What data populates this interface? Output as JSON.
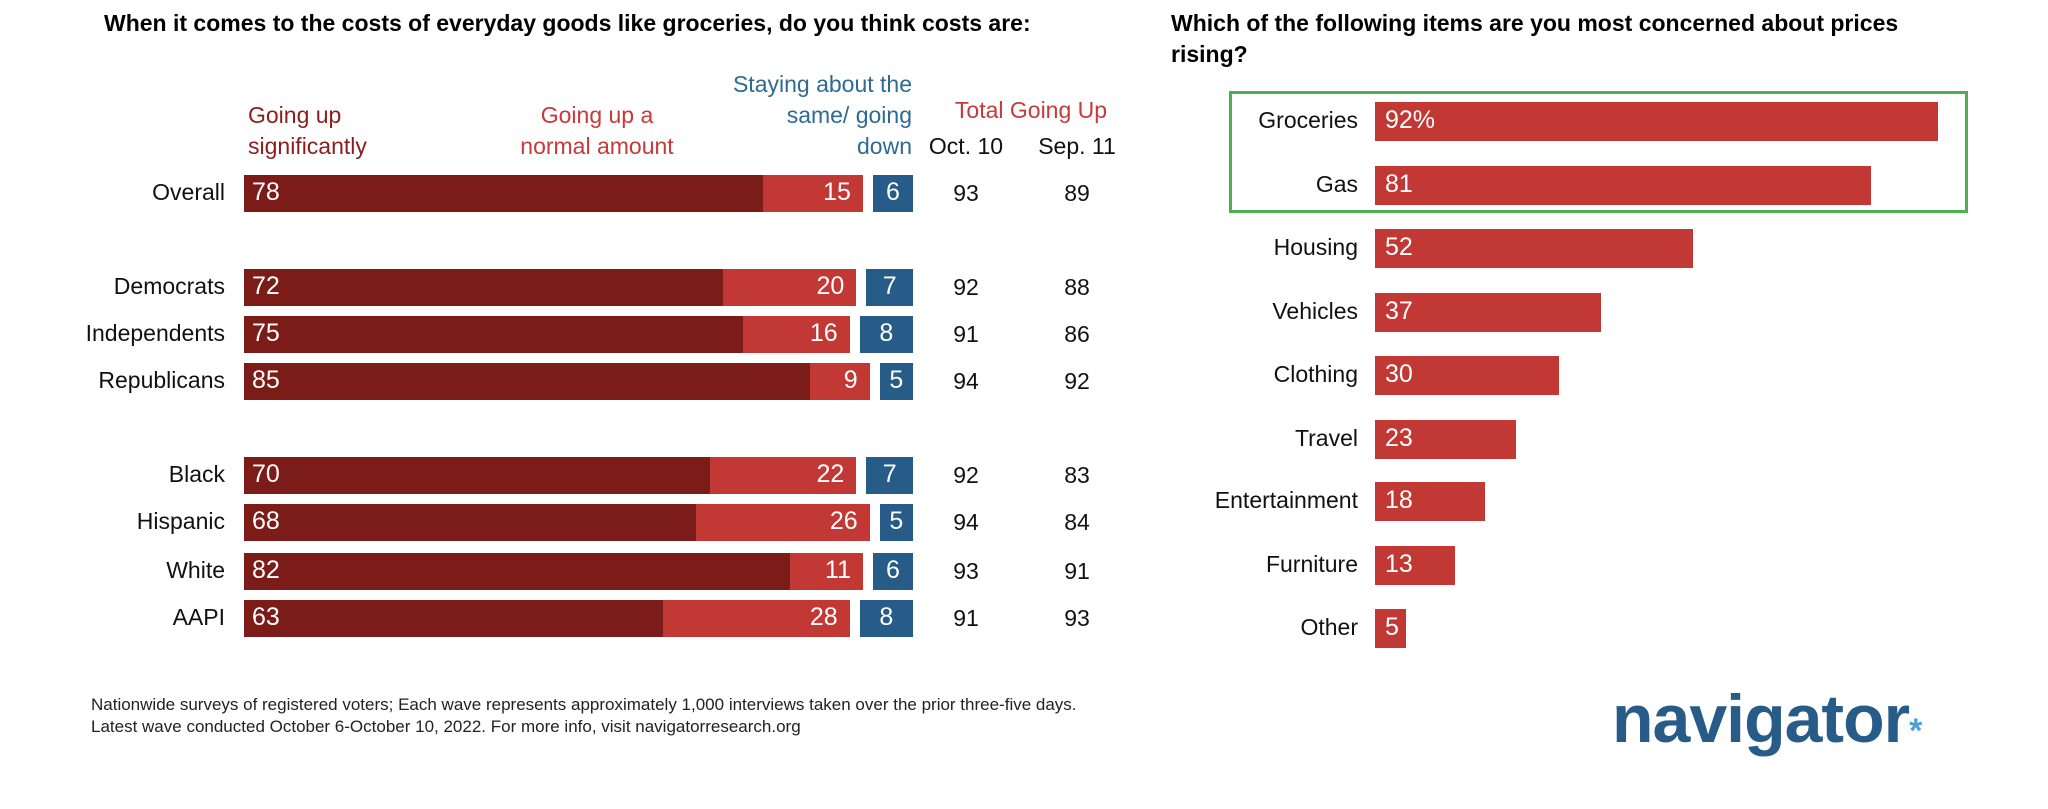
{
  "chart_data": [
    {
      "type": "bar",
      "stacked": true,
      "orientation": "horizontal",
      "title": "When it comes to the costs of everyday goods like groceries, do you think costs are:",
      "categories": [
        "Overall",
        "Democrats",
        "Independents",
        "Republicans",
        "Black",
        "Hispanic",
        "White",
        "AAPI"
      ],
      "series": [
        {
          "name": "Going up significantly",
          "color": "#7b1c19",
          "values": [
            78,
            72,
            75,
            85,
            70,
            68,
            82,
            63
          ]
        },
        {
          "name": "Going up a normal amount",
          "color": "#c23834",
          "values": [
            15,
            20,
            16,
            9,
            22,
            26,
            11,
            28
          ]
        },
        {
          "name": "Staying about the same/ going down",
          "color": "#265c87",
          "values": [
            6,
            7,
            8,
            5,
            7,
            5,
            6,
            8
          ]
        }
      ],
      "total_header": "Total Going Up",
      "total_columns": [
        {
          "name": "Oct. 10",
          "values": [
            93,
            92,
            91,
            94,
            92,
            94,
            93,
            91
          ]
        },
        {
          "name": "Sep. 11",
          "values": [
            89,
            88,
            86,
            92,
            83,
            84,
            91,
            93
          ]
        }
      ]
    },
    {
      "type": "bar",
      "orientation": "horizontal",
      "title": "Which of the following items are you most concerned about prices rising?",
      "categories": [
        "Groceries",
        "Gas",
        "Housing",
        "Vehicles",
        "Clothing",
        "Travel",
        "Entertainment",
        "Furniture",
        "Other"
      ],
      "values": [
        92,
        81,
        52,
        37,
        30,
        23,
        18,
        13,
        5
      ],
      "value_labels": [
        "92%",
        "81",
        "52",
        "37",
        "30",
        "23",
        "18",
        "13",
        "5"
      ],
      "color": "#c23834",
      "highlight": {
        "categories": [
          "Groceries",
          "Gas"
        ],
        "color": "#4caf50"
      }
    }
  ],
  "footer": {
    "line1": "Nationwide surveys of registered voters; Each wave represents approximately 1,000 interviews taken over the prior three-five days.",
    "line2": "Latest wave conducted October 6-October 10, 2022. For more info, visit navigatorresearch.org"
  },
  "logo": {
    "text": "navigator",
    "color": "#265c87",
    "star_color": "#4a9fd4"
  }
}
